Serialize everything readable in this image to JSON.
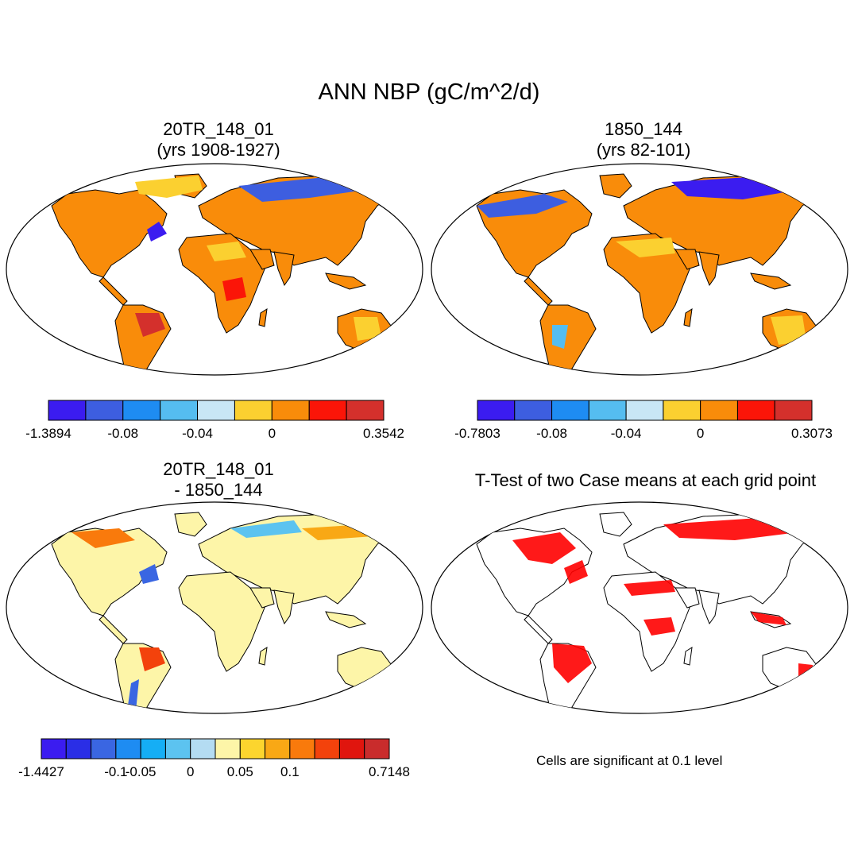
{
  "main_title": "ANN NBP (gC/m^2/d)",
  "panels": [
    {
      "id": "p1",
      "title_line1": "20TR_148_01",
      "title_line2": "(yrs 1908-1927)",
      "colors": [
        "#3b1cf0",
        "#3d5ee0",
        "#1e8cf2",
        "#55bdf0",
        "#c8e6f5",
        "#fbd030",
        "#f98c0a",
        "#fb1508",
        "#d4302c"
      ],
      "ticks": [
        "-1.3894",
        "-0.08",
        "-0.04",
        "0",
        "0.3542"
      ]
    },
    {
      "id": "p2",
      "title_line1": "1850_144",
      "title_line2": "(yrs 82-101)",
      "colors": [
        "#3b1cf0",
        "#3d5ee0",
        "#1e8cf2",
        "#55bdf0",
        "#c8e6f5",
        "#fbd030",
        "#f98c0a",
        "#fb1508",
        "#d4302c"
      ],
      "ticks": [
        "-0.7803",
        "-0.08",
        "-0.04",
        "0",
        "0.3073"
      ]
    },
    {
      "id": "p3",
      "title_line1": "20TR_148_01",
      "title_line2": "- 1850_144",
      "colors": [
        "#3b1cf0",
        "#2a2ee6",
        "#3a66e2",
        "#1e8cf2",
        "#15aef5",
        "#5cc3f0",
        "#b4dcf2",
        "#fdf5a8",
        "#fcd52e",
        "#f9a815",
        "#f97a0c",
        "#f3420c",
        "#e0150e",
        "#c92c2c"
      ],
      "ticks": [
        "-1.4427",
        "-0.1",
        "-0.05",
        "0",
        "0.05",
        "0.1",
        "0.7148"
      ]
    },
    {
      "id": "p4",
      "title_line1": "T-Test of two Case means at each grid point",
      "title_line2": "",
      "note": "Cells are significant at 0.1 level"
    }
  ]
}
